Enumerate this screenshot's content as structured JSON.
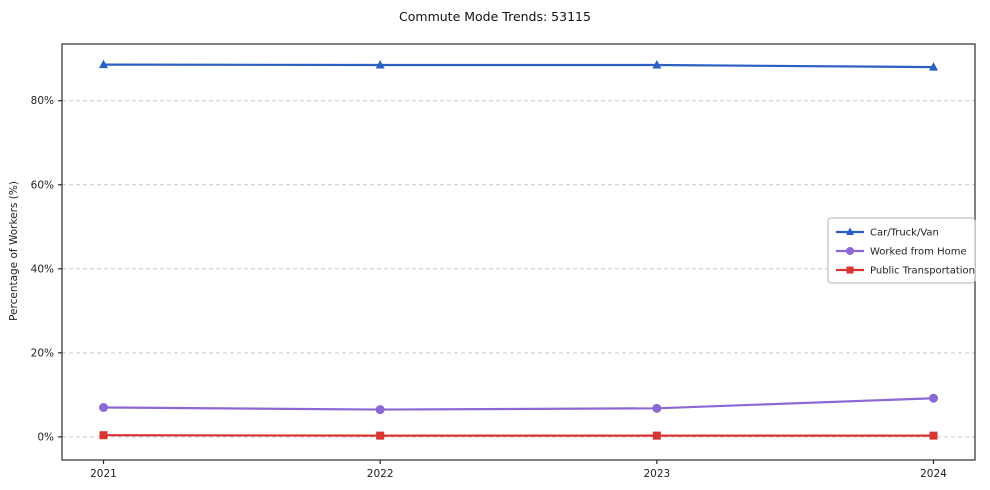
{
  "title": "Commute Mode Trends: 53115",
  "chart_data": {
    "type": "line",
    "title": "Commute Mode Trends: 53115",
    "xlabel": "",
    "ylabel": "Percentage of Workers (%)",
    "x": [
      2021,
      2022,
      2023,
      2024
    ],
    "series": [
      {
        "name": "Car/Truck/Van",
        "values": [
          88.6,
          88.5,
          88.5,
          88.0
        ],
        "color": "#2a5fc4",
        "marker": "triangle"
      },
      {
        "name": "Worked from Home",
        "values": [
          7.0,
          6.5,
          6.8,
          9.2
        ],
        "color": "#8b68d6",
        "marker": "circle"
      },
      {
        "name": "Public Transportation",
        "values": [
          0.4,
          0.3,
          0.3,
          0.3
        ],
        "color": "#d93434",
        "marker": "square"
      }
    ],
    "ylim": [
      -5.5,
      93.5
    ],
    "yticks": [
      0,
      20,
      40,
      60,
      80
    ],
    "ytick_suffix": "%",
    "grid": true,
    "grid_color": "#c9c9c9",
    "legend_position": "right-center",
    "spine_color": "#2b2b2b"
  }
}
